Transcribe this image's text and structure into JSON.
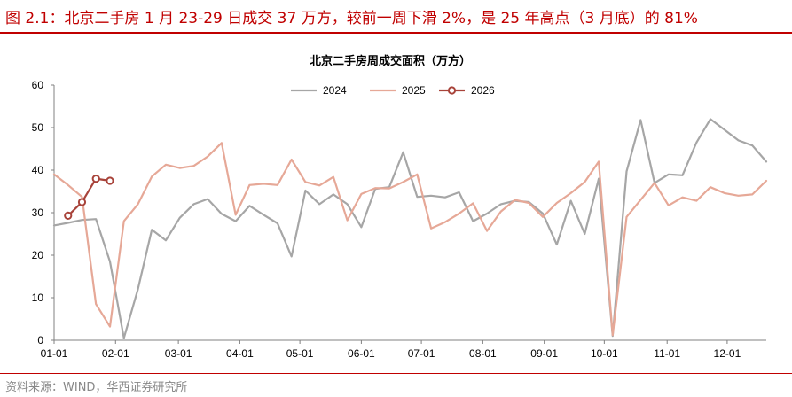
{
  "figure": {
    "title": "图 2.1：北京二手房 1 月 23-29 日成交 37 万方，较前一周下滑 2%，是 25 年高点（3 月底）的 81%",
    "source": "资料来源：WIND，华西证券研究所"
  },
  "chart_data": {
    "type": "line",
    "title": "北京二手房周成交面积（万方）",
    "xlabel": "",
    "ylabel": "",
    "ylim": [
      0,
      60
    ],
    "yticks": [
      0,
      10,
      20,
      30,
      40,
      50,
      60
    ],
    "xticks": [
      "01-01",
      "02-01",
      "03-01",
      "04-01",
      "05-01",
      "06-01",
      "07-01",
      "08-01",
      "09-01",
      "10-01",
      "11-01",
      "12-01"
    ],
    "grid": false,
    "legend_position": "top-center",
    "series": [
      {
        "name": "2024",
        "color": "#a6a6a6",
        "marker": false,
        "x": [
          1,
          2,
          3,
          4,
          5,
          6,
          7,
          8,
          9,
          10,
          11,
          12,
          13,
          14,
          15,
          16,
          17,
          18,
          19,
          20,
          21,
          22,
          23,
          24,
          25,
          26,
          27,
          28,
          29,
          30,
          31,
          32,
          33,
          34,
          35,
          36,
          37,
          38,
          39,
          40,
          41,
          42,
          43,
          44,
          45,
          46,
          47,
          48,
          49,
          50,
          51,
          52
        ],
        "values": [
          27,
          27.6,
          28.3,
          28.5,
          18.5,
          0.5,
          12,
          26,
          23.5,
          28.8,
          32,
          33.2,
          29.7,
          28,
          31.6,
          29.5,
          27.5,
          19.7,
          35.2,
          32,
          34.3,
          32,
          26.6,
          35.6,
          36,
          44.2,
          33.7,
          34,
          33.6,
          34.8,
          28,
          29.8,
          32,
          32.8,
          32.5,
          29.8,
          22.5,
          32.8,
          25,
          38,
          1,
          39.7,
          51.8,
          37,
          39,
          38.8,
          46.5,
          52,
          49.5,
          47,
          45.8,
          42
        ]
      },
      {
        "name": "2025",
        "color": "#e6a897",
        "marker": false,
        "x": [
          1,
          2,
          3,
          4,
          5,
          6,
          7,
          8,
          9,
          10,
          11,
          12,
          13,
          14,
          15,
          16,
          17,
          18,
          19,
          20,
          21,
          22,
          23,
          24,
          25,
          26,
          27,
          28,
          29,
          30,
          31,
          32,
          33,
          34,
          35,
          36,
          37,
          38,
          39,
          40,
          41,
          42,
          43,
          44,
          45,
          46,
          47,
          48,
          49,
          50,
          51,
          52
        ],
        "values": [
          39,
          36.5,
          33.7,
          8.5,
          3.2,
          28,
          32,
          38.5,
          41.3,
          40.5,
          41,
          43.2,
          46.4,
          29.5,
          36.5,
          36.8,
          36.5,
          42.5,
          37.2,
          36.4,
          38.4,
          28.2,
          34.4,
          35.8,
          35.7,
          37.2,
          39,
          26.3,
          27.8,
          29.8,
          32.2,
          25.7,
          30.3,
          33,
          32.3,
          29,
          32.3,
          34.6,
          37.2,
          42,
          1.2,
          29,
          33,
          37,
          31.7,
          33.6,
          32.8,
          36,
          34.6,
          34,
          34.3,
          37.5
        ]
      },
      {
        "name": "2026",
        "color": "#a8433a",
        "marker": true,
        "x": [
          2,
          3,
          4,
          5
        ],
        "values": [
          29.3,
          32.5,
          38,
          37.5
        ]
      }
    ]
  }
}
